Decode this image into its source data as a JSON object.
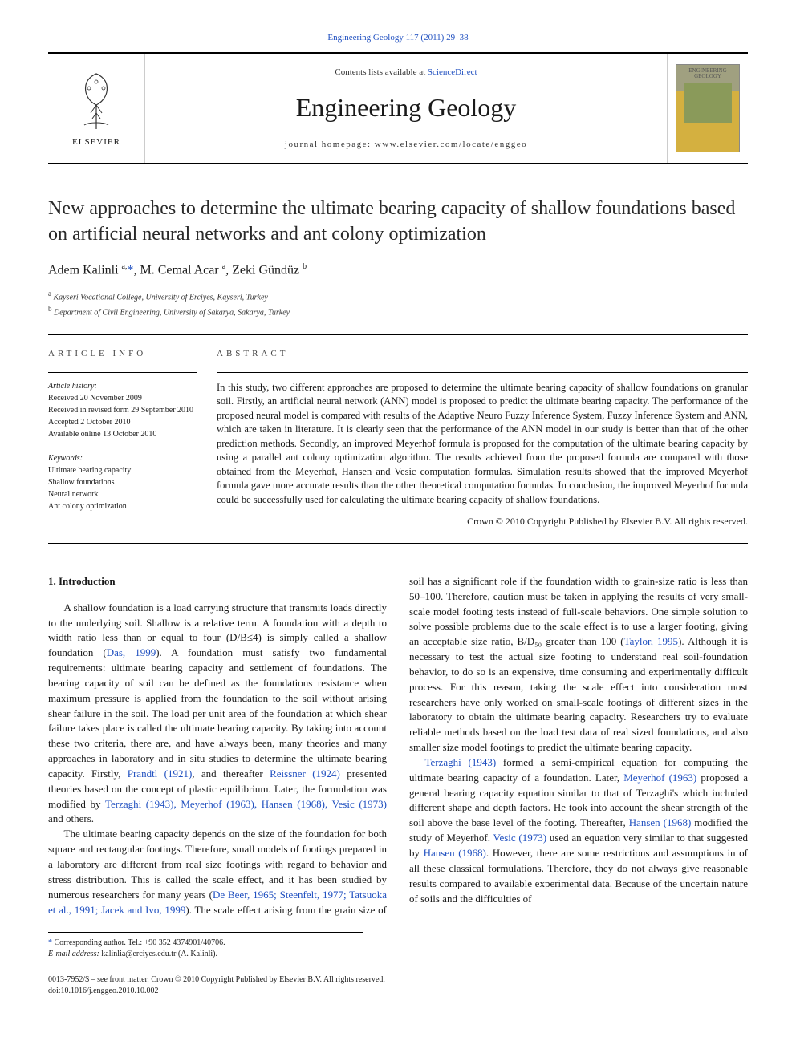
{
  "top_link": "Engineering Geology 117 (2011) 29–38",
  "masthead": {
    "contents_prefix": "Contents lists available at ",
    "contents_link": "ScienceDirect",
    "journal_name": "Engineering Geology",
    "homepage_label": "journal homepage: www.elsevier.com/locate/enggeo",
    "elsevier_label": "ELSEVIER",
    "cover_title": "ENGINEERING GEOLOGY"
  },
  "article": {
    "title": "New approaches to determine the ultimate bearing capacity of shallow foundations based on artificial neural networks and ant colony optimization",
    "authors_html": "Adem Kalinli <sup>a,</sup><span class=\"star\">*</span>, M. Cemal Acar <sup>a</sup>, Zeki Gündüz <sup>b</sup>",
    "affiliations": [
      {
        "sup": "a",
        "text": "Kayseri Vocational College, University of Erciyes, Kayseri, Turkey"
      },
      {
        "sup": "b",
        "text": "Department of Civil Engineering, University of Sakarya, Sakarya, Turkey"
      }
    ]
  },
  "meta": {
    "info_label": "ARTICLE INFO",
    "abstract_label": "ABSTRACT",
    "history_label": "Article history:",
    "history": [
      "Received 20 November 2009",
      "Received in revised form 29 September 2010",
      "Accepted 2 October 2010",
      "Available online 13 October 2010"
    ],
    "keywords_label": "Keywords:",
    "keywords": [
      "Ultimate bearing capacity",
      "Shallow foundations",
      "Neural network",
      "Ant colony optimization"
    ],
    "abstract": "In this study, two different approaches are proposed to determine the ultimate bearing capacity of shallow foundations on granular soil. Firstly, an artificial neural network (ANN) model is proposed to predict the ultimate bearing capacity. The performance of the proposed neural model is compared with results of the Adaptive Neuro Fuzzy Inference System, Fuzzy Inference System and ANN, which are taken in literature. It is clearly seen that the performance of the ANN model in our study is better than that of the other prediction methods. Secondly, an improved Meyerhof formula is proposed for the computation of the ultimate bearing capacity by using a parallel ant colony optimization algorithm. The results achieved from the proposed formula are compared with those obtained from the Meyerhof, Hansen and Vesic computation formulas. Simulation results showed that the improved Meyerhof formula gave more accurate results than the other theoretical computation formulas. In conclusion, the improved Meyerhof formula could be successfully used for calculating the ultimate bearing capacity of shallow foundations.",
    "copyright": "Crown © 2010 Copyright Published by Elsevier B.V. All rights reserved."
  },
  "body": {
    "heading": "1. Introduction",
    "p1a": "A shallow foundation is a load carrying structure that transmits loads directly to the underlying soil. Shallow is a relative term. A foundation with a depth to width ratio less than or equal to four (D/B≤4) is simply called a shallow foundation (",
    "p1c1": "Das, 1999",
    "p1b": "). A foundation must satisfy two fundamental requirements: ultimate bearing capacity and settlement of foundations. The bearing capacity of soil can be defined as the foundations resistance when maximum pressure is applied from the foundation to the soil without arising shear failure in the soil. The load per unit area of the foundation at which shear failure takes place is called the ultimate bearing capacity. By taking into account these two criteria, there are, and have always been, many theories and many approaches in laboratory and in situ studies to determine the ultimate bearing capacity. Firstly, ",
    "p1c2": "Prandtl (1921)",
    "p1c": ", and thereafter ",
    "p1c3": "Reissner (1924)",
    "p1d": " presented theories based on the concept of plastic equilibrium. Later, the formulation was modified by ",
    "p1c4": "Terzaghi (1943), Meyerhof (1963), Hansen (1968), Vesic (1973)",
    "p1e": " and others.",
    "p2a": "The ultimate bearing capacity depends on the size of the foundation for both square and rectangular footings. Therefore, small models of footings prepared in a laboratory are different from real size footings with regard to behavior and stress distribution. This is called the scale effect, and it has been studied by numerous researchers for many years (",
    "p2c1": "De Beer, 1965; Steenfelt, 1977; Tatsuoka et al., 1991; Jacek and Ivo, 1999",
    "p2b": "). The scale effect arising from the grain size of soil has a significant role if the foundation width to grain-size ratio is less than 50–100. Therefore, caution must be taken in applying the results of very small-scale model footing tests instead of full-scale behaviors. One simple solution to solve possible problems due to the scale effect is to use a larger footing, giving an acceptable size ratio, B/D₅₀ greater than 100 (",
    "p2c2": "Taylor, 1995",
    "p2c": "). Although it is necessary to test the actual size footing to understand real soil-foundation behavior, to do so is an expensive, time consuming and experimentally difficult process. For this reason, taking the scale effect into consideration most researchers have only worked on small-scale footings of different sizes in the laboratory to obtain the ultimate bearing capacity. Researchers try to evaluate reliable methods based on the load test data of real sized foundations, and also smaller size model footings to predict the ultimate bearing capacity.",
    "p3c1": "Terzaghi (1943)",
    "p3a": " formed a semi-empirical equation for computing the ultimate bearing capacity of a foundation. Later, ",
    "p3c2": "Meyerhof (1963)",
    "p3b": " proposed a general bearing capacity equation similar to that of Terzaghi's which included different shape and depth factors. He took into account the shear strength of the soil above the base level of the footing. Thereafter, ",
    "p3c3": "Hansen (1968)",
    "p3c": " modified the study of Meyerhof. ",
    "p3c4": "Vesic (1973)",
    "p3d": " used an equation very similar to that suggested by ",
    "p3c5": "Hansen (1968)",
    "p3e": ". However, there are some restrictions and assumptions in of all these classical formulations. Therefore, they do not always give reasonable results compared to available experimental data. Because of the uncertain nature of soils and the difficulties of"
  },
  "corr": {
    "star": "*",
    "line1": " Corresponding author. Tel.: +90 352 4374901/40706.",
    "email_label": "E-mail address:",
    "email": " kalinlia@erciyes.edu.tr ",
    "email_name": "(A. Kalinli)."
  },
  "footer": {
    "line1": "0013-7952/$ – see front matter. Crown © 2010 Copyright Published by Elsevier B.V. All rights reserved.",
    "line2": "doi:10.1016/j.enggeo.2010.10.002"
  },
  "colors": {
    "link": "#2050c0",
    "text": "#1a1a1a",
    "rule": "#000000"
  }
}
